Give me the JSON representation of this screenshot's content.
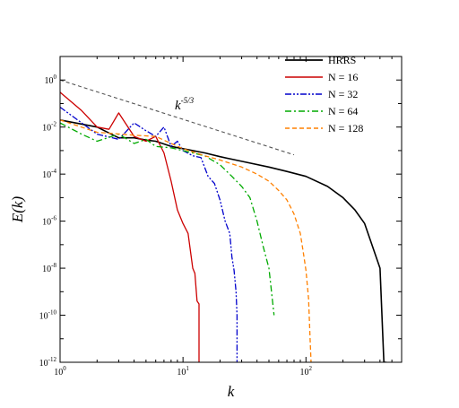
{
  "chart_data": {
    "type": "line",
    "title": "",
    "xlabel": "k",
    "ylabel": "E(k)",
    "x_scale": "log",
    "y_scale": "log",
    "xlim": [
      1,
      600
    ],
    "ylim": [
      1e-12,
      10
    ],
    "x_ticks": [
      {
        "base": "10",
        "exp": "0"
      },
      {
        "base": "10",
        "exp": "1"
      },
      {
        "base": "10",
        "exp": "2"
      }
    ],
    "y_ticks": [
      {
        "base": "10",
        "exp": "0"
      },
      {
        "base": "10",
        "exp": "-2"
      },
      {
        "base": "10",
        "exp": "-4"
      },
      {
        "base": "10",
        "exp": "-6"
      },
      {
        "base": "10",
        "exp": "-8"
      },
      {
        "base": "10",
        "exp": "-10"
      },
      {
        "base": "10",
        "exp": "-12"
      }
    ],
    "grid": false,
    "legend_position": "top-right",
    "annotation": {
      "base": "k",
      "exp": "-5/3"
    },
    "reference_line": {
      "name": "k^-5/3",
      "x": [
        1,
        80
      ],
      "y": [
        1.0,
        0.00066
      ],
      "color": "#555555",
      "style": "dashed"
    },
    "series": [
      {
        "name": "HRRS",
        "color": "#000000",
        "style": "solid",
        "x": [
          1,
          2,
          3,
          4,
          5,
          6,
          8,
          10,
          15,
          20,
          30,
          50,
          70,
          100,
          150,
          200,
          250,
          300,
          400,
          430,
          450
        ],
        "y": [
          0.02,
          0.01,
          0.0035,
          0.0035,
          0.0028,
          0.0025,
          0.0015,
          0.0012,
          0.0008,
          0.00055,
          0.00035,
          0.0002,
          0.00013,
          8e-05,
          3e-05,
          1e-05,
          3e-06,
          8e-07,
          1e-08,
          1e-12,
          1e-12
        ]
      },
      {
        "name": "N = 16",
        "color": "#cc0000",
        "style": "solid",
        "x": [
          1,
          1.5,
          2,
          2.5,
          3,
          4,
          5,
          6,
          7,
          8,
          9,
          10,
          11,
          12,
          12.5,
          13,
          13.5,
          13.5
        ],
        "y": [
          0.3,
          0.05,
          0.01,
          0.008,
          0.04,
          0.004,
          0.0025,
          0.004,
          0.0008,
          5e-05,
          3e-06,
          8e-07,
          3e-07,
          1e-08,
          6e-09,
          4e-10,
          3e-10,
          1e-12
        ]
      },
      {
        "name": "N = 32",
        "color": "#0000cc",
        "style": "dashdotdot",
        "x": [
          1,
          1.5,
          2,
          3,
          4,
          5,
          6,
          7,
          8,
          9,
          10,
          12,
          14,
          16,
          18,
          20,
          22,
          24,
          25,
          26,
          27,
          27.5,
          27.5
        ],
        "y": [
          0.07,
          0.015,
          0.005,
          0.003,
          0.015,
          0.007,
          0.004,
          0.01,
          0.0015,
          0.0025,
          0.001,
          0.0006,
          0.0005,
          8e-05,
          4e-05,
          8e-06,
          1e-06,
          3e-07,
          3e-08,
          8e-09,
          1e-09,
          1e-10,
          1e-12
        ]
      },
      {
        "name": "N = 64",
        "color": "#00aa00",
        "style": "dashdot",
        "x": [
          1,
          1.5,
          2,
          3,
          4,
          5,
          6,
          8,
          10,
          15,
          20,
          25,
          30,
          35,
          40,
          45,
          50,
          55
        ],
        "y": [
          0.015,
          0.005,
          0.0025,
          0.005,
          0.002,
          0.003,
          0.0015,
          0.0013,
          0.001,
          0.0006,
          0.00025,
          8e-05,
          3e-05,
          1e-05,
          1e-06,
          8e-08,
          1e-08,
          1e-10
        ]
      },
      {
        "name": "N = 128",
        "color": "#ff8000",
        "style": "dashed",
        "x": [
          1,
          2,
          4,
          6,
          8,
          10,
          15,
          20,
          30,
          40,
          50,
          60,
          70,
          80,
          90,
          95,
          100,
          105,
          108,
          110
        ],
        "y": [
          0.02,
          0.006,
          0.0045,
          0.004,
          0.002,
          0.0012,
          0.0006,
          0.0004,
          0.0002,
          0.0001,
          5e-05,
          2e-05,
          8e-06,
          2e-06,
          3e-07,
          5e-08,
          8e-09,
          5e-10,
          1e-11,
          1e-12
        ]
      }
    ]
  }
}
